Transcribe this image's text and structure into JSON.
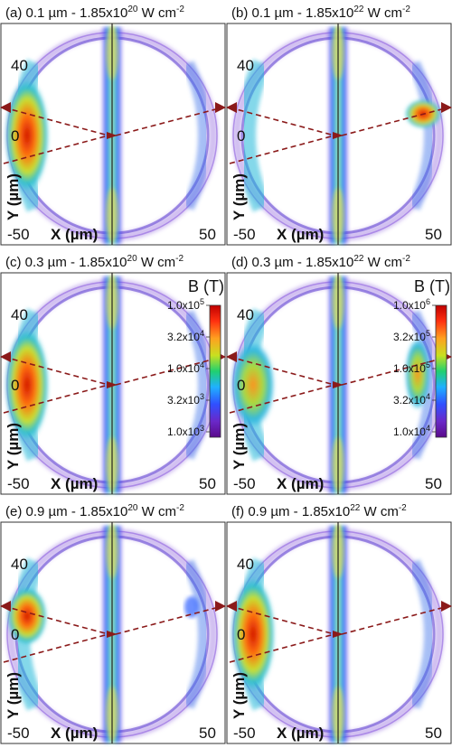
{
  "chart_data": [
    {
      "type": "heatmap",
      "id": "a",
      "title_main": "(a) 0.1 µm - 1.85x10",
      "title_exp": "20",
      "title_unit": " W cm",
      "title_unit_exp": "-2",
      "xlabel": "X (µm)",
      "ylabel": "Y (µm)",
      "x_tick_labels": [
        "-50",
        "50"
      ],
      "y_tick_labels": [
        "40",
        "0",
        "-50"
      ],
      "hotspot": {
        "side": "left-arc",
        "intensity": "high"
      },
      "colorbar": null
    },
    {
      "type": "heatmap",
      "id": "b",
      "title_main": "(b) 0.1 µm - 1.85x10",
      "title_exp": "22",
      "title_unit": " W cm",
      "title_unit_exp": "-2",
      "xlabel": "X (µm)",
      "ylabel": "Y (µm)",
      "x_tick_labels": [
        "-50",
        "50"
      ],
      "y_tick_labels": [
        "40",
        "0",
        "-50"
      ],
      "hotspot": {
        "side": "right-spot",
        "intensity": "high"
      },
      "colorbar": null
    },
    {
      "type": "heatmap",
      "id": "c",
      "title_main": "(c) 0.3 µm - 1.85x10",
      "title_exp": "20",
      "title_unit": " W cm",
      "title_unit_exp": "-2",
      "xlabel": "X (µm)",
      "ylabel": "Y (µm)",
      "x_tick_labels": [
        "-50",
        "50"
      ],
      "y_tick_labels": [
        "40",
        "0",
        "-50"
      ],
      "hotspot": {
        "side": "left-arc",
        "intensity": "high"
      },
      "colorbar": {
        "title": "B (T)",
        "scale": "log",
        "tick_labels": [
          "1.0x10^5",
          "3.2x10^4",
          "1.0x10^4",
          "3.2x10^3",
          "1.0x10^3"
        ]
      }
    },
    {
      "type": "heatmap",
      "id": "d",
      "title_main": "(d) 0.3 µm - 1.85x10",
      "title_exp": "22",
      "title_unit": " W cm",
      "title_unit_exp": "-2",
      "xlabel": "X (µm)",
      "ylabel": "Y (µm)",
      "x_tick_labels": [
        "-50",
        "50"
      ],
      "y_tick_labels": [
        "40",
        "0",
        "-50"
      ],
      "hotspot": {
        "side": "left-arc",
        "intensity": "medium"
      },
      "colorbar": {
        "title": "B (T)",
        "scale": "log",
        "tick_labels": [
          "1.0x10^6",
          "3.2x10^5",
          "1.0x10^5",
          "3.2x10^4",
          "1.0x10^4"
        ]
      }
    },
    {
      "type": "heatmap",
      "id": "e",
      "title_main": "(e) 0.9 µm - 1.85x10",
      "title_exp": "20",
      "title_unit": " W cm",
      "title_unit_exp": "-2",
      "xlabel": "X (µm)",
      "ylabel": "Y (µm)",
      "x_tick_labels": [
        "-50",
        "50"
      ],
      "y_tick_labels": [
        "40",
        "0",
        "-50"
      ],
      "hotspot": {
        "side": "left-spot",
        "intensity": "high"
      },
      "colorbar": null
    },
    {
      "type": "heatmap",
      "id": "f",
      "title_main": "(f) 0.9 µm - 1.85x10",
      "title_exp": "22",
      "title_unit": " W cm",
      "title_unit_exp": "-2",
      "xlabel": "X (µm)",
      "ylabel": "Y (µm)",
      "x_tick_labels": [
        "-50",
        "50"
      ],
      "y_tick_labels": [
        "40",
        "0",
        "-50"
      ],
      "hotspot": {
        "side": "left-arc",
        "intensity": "high"
      },
      "colorbar": null
    }
  ],
  "colors": {
    "laser_arrow": "#8b1a1a",
    "colormap": [
      "#5a0a8a",
      "#6a28c8",
      "#3050ff",
      "#20b0ff",
      "#20d070",
      "#c8e020",
      "#ffa020",
      "#ff3010",
      "#c00000"
    ]
  }
}
